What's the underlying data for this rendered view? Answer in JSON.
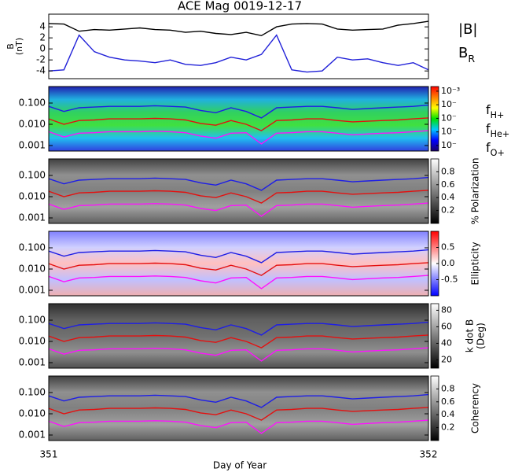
{
  "chart_data": [
    {
      "type": "line",
      "title": "ACE Mag 0019-12-17",
      "ylabel": [
        "B",
        "(nT)"
      ],
      "x": [
        351.0,
        351.04,
        351.08,
        351.12,
        351.16,
        351.2,
        351.24,
        351.28,
        351.32,
        351.36,
        351.4,
        351.44,
        351.48,
        351.52,
        351.56,
        351.6,
        351.64,
        351.68,
        351.72,
        351.76,
        351.8,
        351.84,
        351.88,
        351.92,
        351.96,
        352.0
      ],
      "xlim": [
        351,
        352
      ],
      "ylim": [
        -5.4,
        6.3
      ],
      "yticks": [
        4,
        2,
        0,
        -2,
        -4
      ],
      "series": [
        {
          "name": "|B|",
          "color": "#000000",
          "values": [
            4.6,
            4.5,
            3.2,
            3.5,
            3.4,
            3.6,
            3.8,
            3.5,
            3.4,
            3.0,
            3.2,
            2.8,
            2.6,
            3.0,
            2.4,
            4.0,
            4.5,
            4.6,
            4.5,
            3.6,
            3.4,
            3.5,
            3.6,
            4.3,
            4.6,
            5.0
          ]
        },
        {
          "name": "B",
          "name_sub": "R",
          "color": "#2020d8",
          "values": [
            -4.0,
            -3.8,
            2.5,
            -0.5,
            -1.5,
            -2.0,
            -2.2,
            -2.5,
            -2.0,
            -2.8,
            -3.0,
            -2.5,
            -1.5,
            -2.0,
            -1.0,
            2.5,
            -3.8,
            -4.2,
            -4.0,
            -1.5,
            -2.0,
            -1.8,
            -2.5,
            -3.0,
            -2.5,
            -3.8
          ]
        }
      ]
    },
    {
      "type": "spectrogram",
      "ylog": true,
      "xlim": [
        351,
        352
      ],
      "ylim": [
        0.00055,
        0.6
      ],
      "yticks": [
        {
          "value": 0.1,
          "label": "0.100"
        },
        {
          "value": 0.01,
          "label": "0.010"
        },
        {
          "value": 0.001,
          "label": "0.001"
        }
      ],
      "x": [
        351.0,
        351.04,
        351.08,
        351.12,
        351.16,
        351.2,
        351.24,
        351.28,
        351.32,
        351.36,
        351.4,
        351.44,
        351.48,
        351.52,
        351.56,
        351.6,
        351.64,
        351.68,
        351.72,
        351.76,
        351.8,
        351.84,
        351.88,
        351.92,
        351.96,
        352.0
      ],
      "series": [
        {
          "name": "f",
          "name_sub": "H+",
          "color": "#1e1ee6",
          "values": [
            0.07,
            0.04,
            0.06,
            0.065,
            0.07,
            0.07,
            0.07,
            0.075,
            0.07,
            0.065,
            0.045,
            0.035,
            0.06,
            0.04,
            0.02,
            0.06,
            0.065,
            0.07,
            0.07,
            0.06,
            0.05,
            0.055,
            0.06,
            0.065,
            0.07,
            0.08
          ]
        },
        {
          "name": "f",
          "name_sub": "He+",
          "color": "#e41010",
          "values": [
            0.018,
            0.01,
            0.015,
            0.016,
            0.018,
            0.018,
            0.018,
            0.019,
            0.018,
            0.016,
            0.011,
            0.009,
            0.015,
            0.01,
            0.005,
            0.015,
            0.016,
            0.018,
            0.018,
            0.015,
            0.013,
            0.014,
            0.015,
            0.016,
            0.018,
            0.02
          ]
        },
        {
          "name": "f",
          "name_sub": "O+",
          "color": "#ff10ff",
          "values": [
            0.0045,
            0.0025,
            0.0038,
            0.004,
            0.0045,
            0.0045,
            0.0045,
            0.0047,
            0.0045,
            0.004,
            0.0028,
            0.0022,
            0.0038,
            0.004,
            0.0012,
            0.0038,
            0.004,
            0.0045,
            0.0045,
            0.0038,
            0.0032,
            0.0035,
            0.0038,
            0.004,
            0.0045,
            0.005
          ]
        }
      ],
      "colorbar": {
        "log": true,
        "lim": [
          3.9e-08,
          0.0022
        ],
        "colors": [
          "#1a0066",
          "#0000ff",
          "#00c8ff",
          "#00e000",
          "#ffff00",
          "#ff8000",
          "#ff0000"
        ],
        "ticks": [
          {
            "value": 0.001,
            "label": "10⁻³"
          },
          {
            "value": 0.0001,
            "label": "10⁻"
          },
          {
            "value": 1e-05,
            "label": "10⁻"
          },
          {
            "value": 1e-06,
            "label": "10⁻"
          },
          {
            "value": 1e-07,
            "label": "10⁻"
          }
        ]
      }
    },
    {
      "type": "spectrogram",
      "ylog": true,
      "xlim": [
        351,
        352
      ],
      "ylim": [
        0.00055,
        0.6
      ],
      "yticks": [
        {
          "value": 0.1,
          "label": "0.100"
        },
        {
          "value": 0.01,
          "label": "0.010"
        },
        {
          "value": 0.001,
          "label": "0.001"
        }
      ],
      "colorbar": {
        "label": [
          "% Polarization"
        ],
        "lim": [
          0,
          1
        ],
        "colors": [
          "#000000",
          "#ffffff"
        ],
        "ticks": [
          0.2,
          0.4,
          0.6,
          0.8
        ]
      }
    },
    {
      "type": "spectrogram",
      "ylog": true,
      "xlim": [
        351,
        352
      ],
      "ylim": [
        0.00055,
        0.6
      ],
      "yticks": [
        {
          "value": 0.1,
          "label": "0.100"
        },
        {
          "value": 0.01,
          "label": "0.010"
        },
        {
          "value": 0.001,
          "label": "0.001"
        }
      ],
      "colorbar": {
        "label": [
          "Ellipticity"
        ],
        "lim": [
          -1,
          1
        ],
        "colors": [
          "#0000ff",
          "#ffffff",
          "#ff0000"
        ],
        "ticks": [
          0.5,
          {
            "value": 0,
            "label": "0.0"
          },
          -0.5
        ]
      }
    },
    {
      "type": "spectrogram",
      "ylog": true,
      "xlim": [
        351,
        352
      ],
      "ylim": [
        0.00055,
        0.6
      ],
      "yticks": [
        {
          "value": 0.1,
          "label": "0.100"
        },
        {
          "value": 0.01,
          "label": "0.010"
        },
        {
          "value": 0.001,
          "label": "0.001"
        }
      ],
      "colorbar": {
        "label": [
          "k dot B",
          "(Deg)"
        ],
        "lim": [
          10,
          88
        ],
        "colors": [
          "#000000",
          "#ffffff"
        ],
        "ticks": [
          80,
          60,
          40,
          20
        ]
      }
    },
    {
      "type": "spectrogram",
      "ylog": true,
      "xlim": [
        351,
        352
      ],
      "ylim": [
        0.00055,
        0.6
      ],
      "xlabel": "Day of Year",
      "xticks": [
        351,
        352
      ],
      "yticks": [
        {
          "value": 0.1,
          "label": "0.100"
        },
        {
          "value": 0.01,
          "label": "0.010"
        },
        {
          "value": 0.001,
          "label": "0.001"
        }
      ],
      "colorbar": {
        "label": [
          "Coherency"
        ],
        "lim": [
          0,
          1
        ],
        "colors": [
          "#000000",
          "#ffffff"
        ],
        "ticks": [
          0.2,
          0.4,
          0.6,
          0.8
        ]
      }
    }
  ]
}
